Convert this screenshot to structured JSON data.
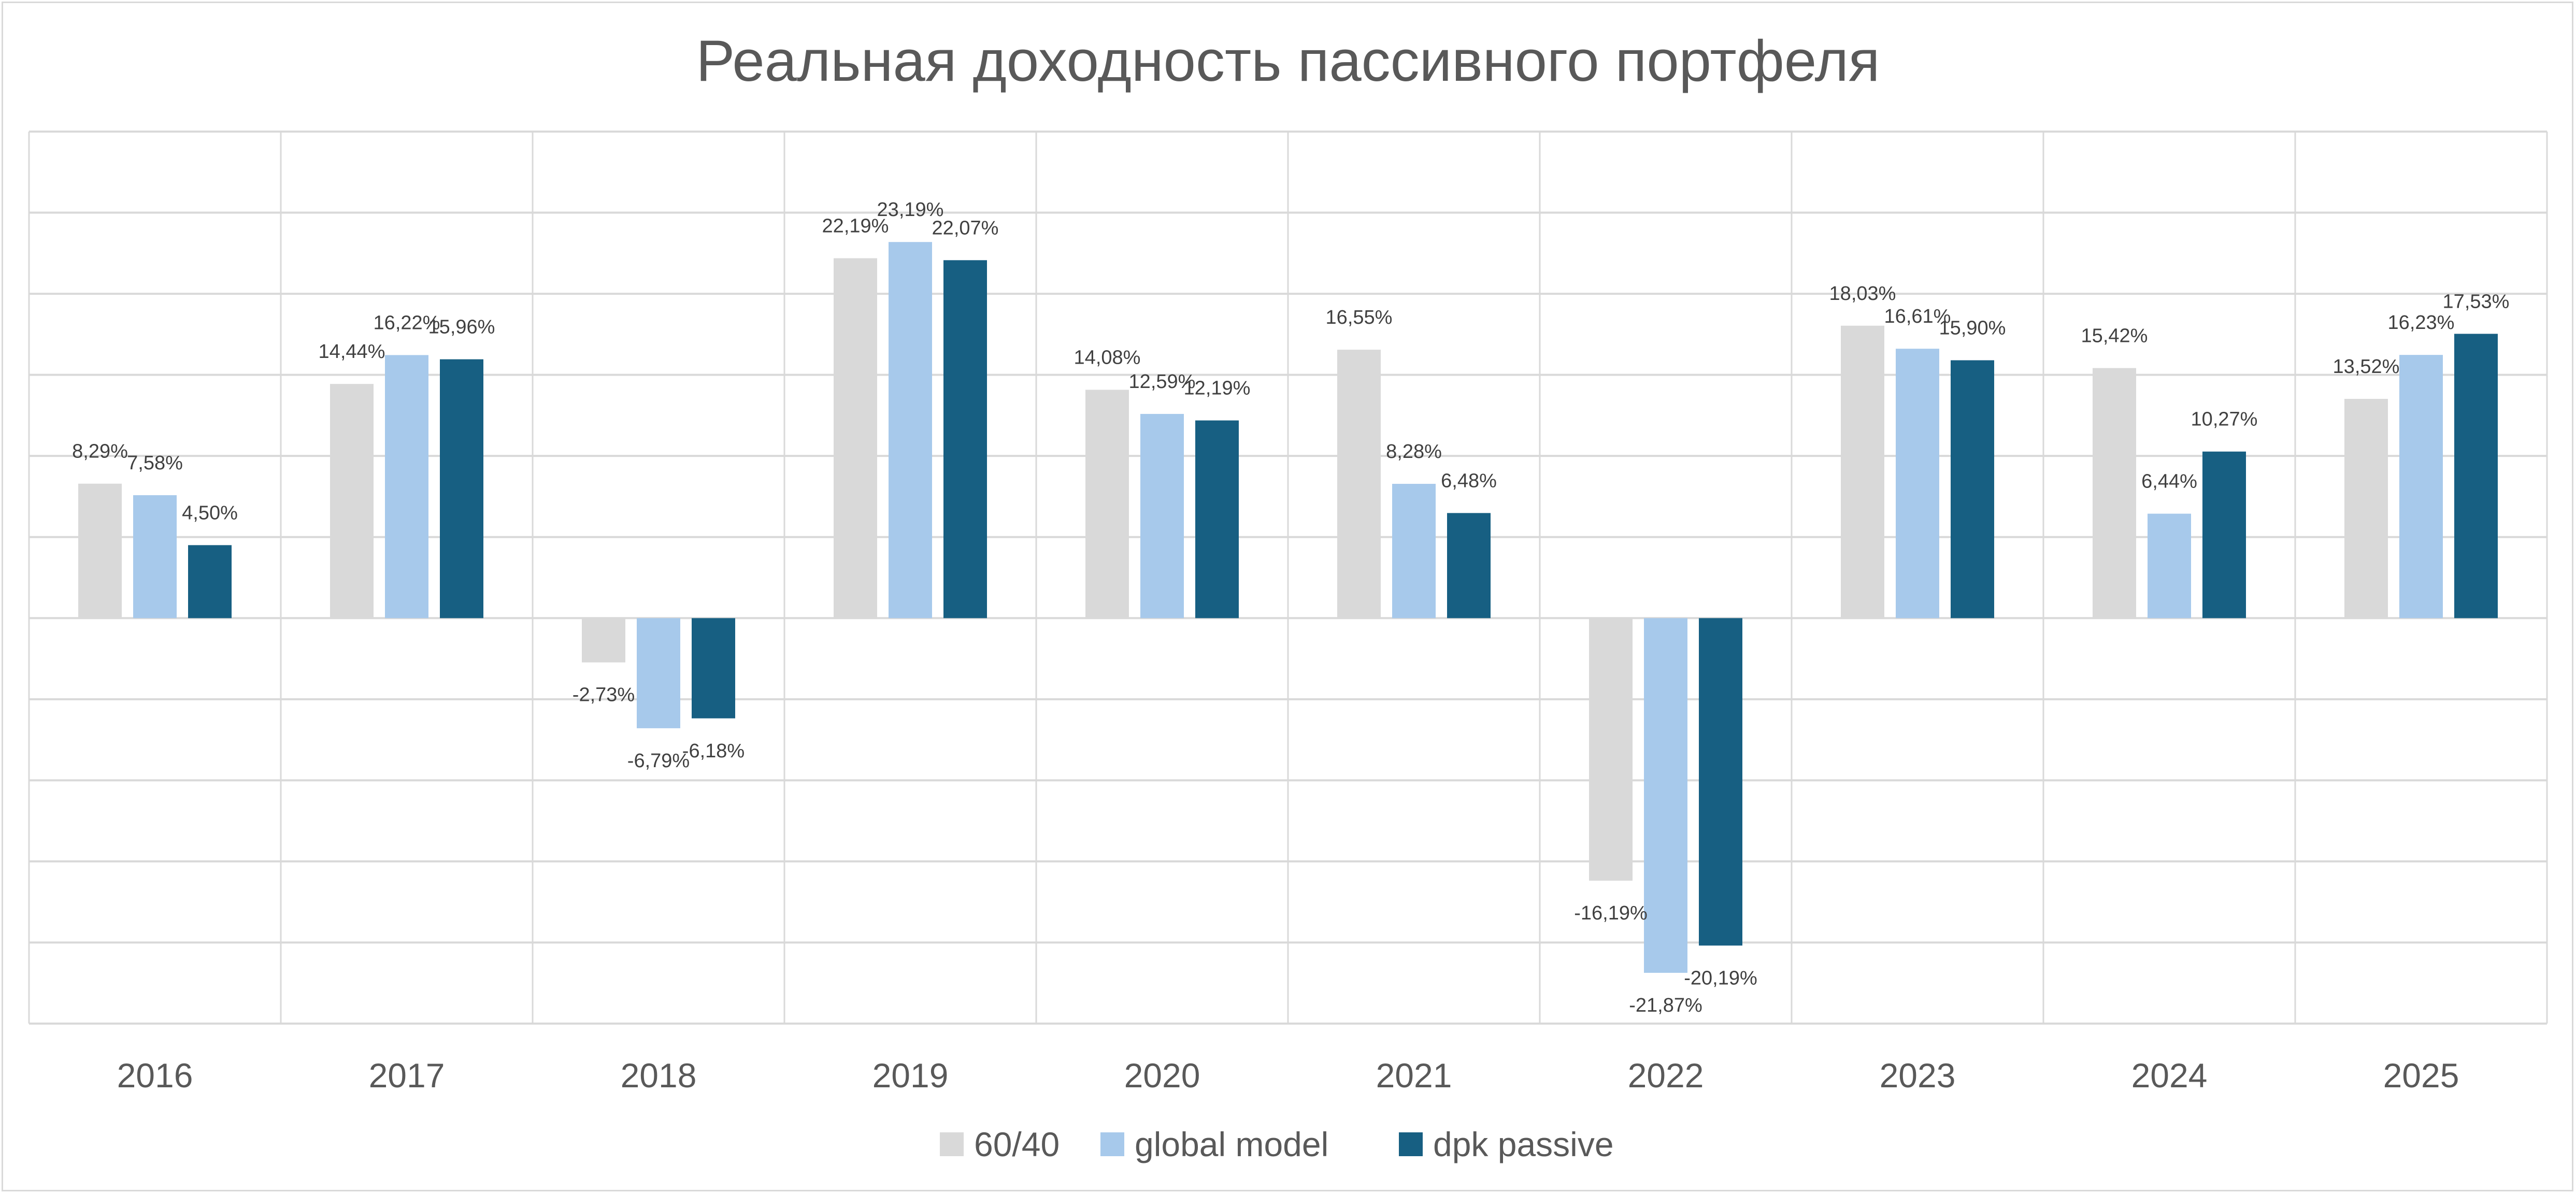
{
  "chart_data": {
    "type": "bar",
    "title": "Реальная доходность пассивного портфеля",
    "xlabel": "",
    "ylabel": "",
    "ylim": [
      -25,
      30
    ],
    "ytick_step": 5,
    "y_tick_labels_visible": false,
    "grid": true,
    "legend_position": "bottom",
    "value_format": "percent-comma-2dp",
    "categories": [
      "2016",
      "2017",
      "2018",
      "2019",
      "2020",
      "2021",
      "2022",
      "2023",
      "2024",
      "2025"
    ],
    "series": [
      {
        "name": "60/40",
        "color": "#D9D9D9",
        "values": [
          8.29,
          14.44,
          -2.73,
          22.19,
          14.08,
          16.55,
          -16.19,
          18.03,
          15.42,
          13.52
        ],
        "labels": [
          "8,29%",
          "14,44%",
          "-2,73%",
          "22,19%",
          "14,08%",
          "16,55%",
          "-16,19%",
          "18,03%",
          "15,42%",
          "13,52%"
        ]
      },
      {
        "name": "global model",
        "color": "#A7C9EB",
        "values": [
          7.58,
          16.22,
          -6.79,
          23.19,
          12.59,
          8.28,
          -21.87,
          16.61,
          6.44,
          16.23
        ],
        "labels": [
          "7,58%",
          "16,22%",
          "-6,79%",
          "23,19%",
          "12,59%",
          "8,28%",
          "-21,87%",
          "16,61%",
          "6,44%",
          "16,23%"
        ]
      },
      {
        "name": "dpk passive",
        "color": "#175F82",
        "values": [
          4.5,
          15.96,
          -6.18,
          22.07,
          12.19,
          6.48,
          -20.19,
          15.9,
          10.27,
          17.53
        ],
        "labels": [
          "4,50%",
          "15,96%",
          "-6,18%",
          "22,07%",
          "12,19%",
          "6,48%",
          "-20,19%",
          "15,90%",
          "10,27%",
          "17,53%"
        ]
      }
    ]
  }
}
